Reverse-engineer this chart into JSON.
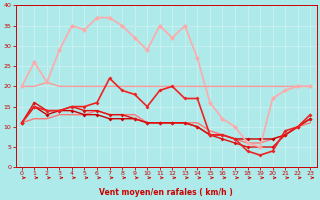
{
  "xlabel": "Vent moyen/en rafales ( km/h )",
  "xlim": [
    -0.5,
    23.5
  ],
  "ylim": [
    0,
    40
  ],
  "yticks": [
    0,
    5,
    10,
    15,
    20,
    25,
    30,
    35,
    40
  ],
  "xticks": [
    0,
    1,
    2,
    3,
    4,
    5,
    6,
    7,
    8,
    9,
    10,
    11,
    12,
    13,
    14,
    15,
    16,
    17,
    18,
    19,
    20,
    21,
    22,
    23
  ],
  "bg_color": "#aeeaea",
  "grid_color": "#c8f0f0",
  "series": [
    {
      "x": [
        0,
        1,
        2,
        3,
        4,
        5,
        6,
        7,
        8,
        9,
        10,
        11,
        12,
        13,
        14,
        15,
        16,
        17,
        18,
        19,
        20,
        21,
        22,
        23
      ],
      "y": [
        11,
        15,
        13,
        14,
        14,
        13,
        13,
        12,
        12,
        12,
        11,
        11,
        11,
        11,
        10,
        8,
        8,
        7,
        7,
        7,
        7,
        8,
        10,
        12
      ],
      "color": "#cc0000",
      "lw": 1.0,
      "marker": "D",
      "ms": 2.0
    },
    {
      "x": [
        0,
        1,
        2,
        3,
        4,
        5,
        6,
        7,
        8,
        9,
        10,
        11,
        12,
        13,
        14,
        15,
        16,
        17,
        18,
        19,
        20,
        21,
        22,
        23
      ],
      "y": [
        11,
        16,
        14,
        14,
        15,
        14,
        14,
        13,
        13,
        12,
        11,
        11,
        11,
        11,
        10,
        8,
        7,
        6,
        5,
        5,
        5,
        8,
        10,
        12
      ],
      "color": "#dd1111",
      "lw": 1.0,
      "marker": "D",
      "ms": 2.0
    },
    {
      "x": [
        0,
        1,
        2,
        3,
        4,
        5,
        6,
        7,
        8,
        9,
        10,
        11,
        12,
        13,
        14,
        15,
        16,
        17,
        18,
        19,
        20,
        21,
        22,
        23
      ],
      "y": [
        11,
        15,
        14,
        14,
        15,
        15,
        16,
        22,
        19,
        18,
        15,
        19,
        20,
        17,
        17,
        8,
        8,
        7,
        4,
        3,
        4,
        9,
        10,
        13
      ],
      "color": "#ee2222",
      "lw": 1.2,
      "marker": "D",
      "ms": 2.0
    },
    {
      "x": [
        0,
        1,
        2,
        3,
        4,
        5,
        6,
        7,
        8,
        9,
        10,
        11,
        12,
        13,
        14,
        15,
        16,
        17,
        18,
        19,
        20,
        21,
        22,
        23
      ],
      "y": [
        20,
        20,
        21,
        20,
        20,
        20,
        20,
        20,
        20,
        20,
        20,
        20,
        20,
        20,
        20,
        20,
        20,
        20,
        20,
        20,
        20,
        20,
        20,
        20
      ],
      "color": "#ff9999",
      "lw": 1.0,
      "marker": null,
      "ms": 0
    },
    {
      "x": [
        0,
        1,
        2,
        3,
        4,
        5,
        6,
        7,
        8,
        9,
        10,
        11,
        12,
        13,
        14,
        15,
        16,
        17,
        18,
        19,
        20,
        21,
        22,
        23
      ],
      "y": [
        20,
        26,
        21,
        29,
        35,
        34,
        37,
        37,
        35,
        32,
        29,
        35,
        32,
        35,
        27,
        16,
        12,
        10,
        6,
        5,
        17,
        19,
        20,
        20
      ],
      "color": "#ffaaaa",
      "lw": 1.2,
      "marker": "D",
      "ms": 2.5
    },
    {
      "x": [
        0,
        1,
        2,
        3,
        4,
        5,
        6,
        7,
        8,
        9,
        10,
        11,
        12,
        13,
        14,
        15,
        16,
        17,
        18,
        19,
        20,
        21,
        22,
        23
      ],
      "y": [
        11,
        12,
        12,
        13,
        13,
        13,
        14,
        13,
        13,
        13,
        11,
        11,
        11,
        11,
        11,
        9,
        8,
        7,
        6,
        6,
        7,
        8,
        10,
        11
      ],
      "color": "#ff7777",
      "lw": 1.0,
      "marker": null,
      "ms": 0
    }
  ],
  "tick_color": "#cc0000",
  "spine_color": "#cc0000",
  "xlabel_color": "#cc0000",
  "arrow_color": "#cc0000"
}
